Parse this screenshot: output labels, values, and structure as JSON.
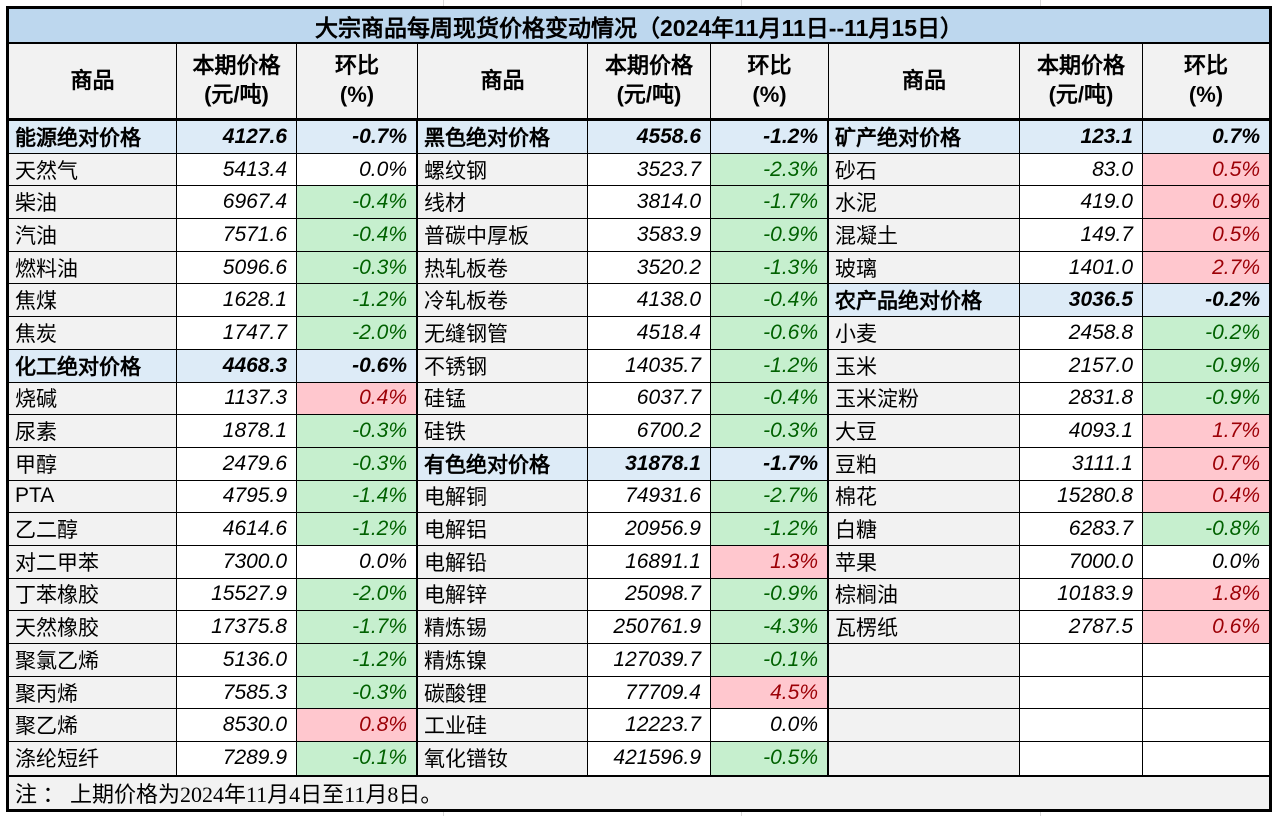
{
  "title": "大宗商品每周现货价格变动情况（2024年11月11日--11月15日）",
  "note": "注 ： 上期价格为2024年11月4日至11月8日。",
  "header": {
    "commodity": "商品",
    "price_line1": "本期价格",
    "price_line2": "(元/吨)",
    "change_line1": "环比",
    "change_line2": "(%)"
  },
  "colors": {
    "title_bg": "#BDD7EE",
    "header_bg": "#F2F2F2",
    "aggregate_bg": "#DDEBF7",
    "increase_bg": "#FFC7CE",
    "increase_text": "#9C0006",
    "decrease_bg": "#C6EFCE",
    "decrease_text": "#006100"
  },
  "chart_data": {
    "type": "table",
    "title": "大宗商品每周现货价格变动情况（2024年11月11日--11月15日）",
    "columns": [
      "商品",
      "本期价格(元/吨)",
      "环比(%)"
    ]
  },
  "groups": [
    {
      "rows": [
        {
          "name": "能源绝对价格",
          "price": "4127.6",
          "change": "-0.7%",
          "type": "agg"
        },
        {
          "name": "天然气",
          "price": "5413.4",
          "change": "0.0%",
          "type": "flat"
        },
        {
          "name": "柴油",
          "price": "6967.4",
          "change": "-0.4%",
          "type": "down"
        },
        {
          "name": "汽油",
          "price": "7571.6",
          "change": "-0.4%",
          "type": "down"
        },
        {
          "name": "燃料油",
          "price": "5096.6",
          "change": "-0.3%",
          "type": "down"
        },
        {
          "name": "焦煤",
          "price": "1628.1",
          "change": "-1.2%",
          "type": "down"
        },
        {
          "name": "焦炭",
          "price": "1747.7",
          "change": "-2.0%",
          "type": "down"
        },
        {
          "name": "化工绝对价格",
          "price": "4468.3",
          "change": "-0.6%",
          "type": "agg"
        },
        {
          "name": "烧碱",
          "price": "1137.3",
          "change": "0.4%",
          "type": "up"
        },
        {
          "name": "尿素",
          "price": "1878.1",
          "change": "-0.3%",
          "type": "down"
        },
        {
          "name": "甲醇",
          "price": "2479.6",
          "change": "-0.3%",
          "type": "down"
        },
        {
          "name": "PTA",
          "price": "4795.9",
          "change": "-1.4%",
          "type": "down"
        },
        {
          "name": "乙二醇",
          "price": "4614.6",
          "change": "-1.2%",
          "type": "down"
        },
        {
          "name": "对二甲苯",
          "price": "7300.0",
          "change": "0.0%",
          "type": "flat"
        },
        {
          "name": "丁苯橡胶",
          "price": "15527.9",
          "change": "-2.0%",
          "type": "down"
        },
        {
          "name": "天然橡胶",
          "price": "17375.8",
          "change": "-1.7%",
          "type": "down"
        },
        {
          "name": "聚氯乙烯",
          "price": "5136.0",
          "change": "-1.2%",
          "type": "down"
        },
        {
          "name": "聚丙烯",
          "price": "7585.3",
          "change": "-0.3%",
          "type": "down"
        },
        {
          "name": "聚乙烯",
          "price": "8530.0",
          "change": "0.8%",
          "type": "up"
        },
        {
          "name": "涤纶短纤",
          "price": "7289.9",
          "change": "-0.1%",
          "type": "down"
        }
      ]
    },
    {
      "rows": [
        {
          "name": "黑色绝对价格",
          "price": "4558.6",
          "change": "-1.2%",
          "type": "agg"
        },
        {
          "name": "螺纹钢",
          "price": "3523.7",
          "change": "-2.3%",
          "type": "down"
        },
        {
          "name": "线材",
          "price": "3814.0",
          "change": "-1.7%",
          "type": "down"
        },
        {
          "name": "普碳中厚板",
          "price": "3583.9",
          "change": "-0.9%",
          "type": "down"
        },
        {
          "name": "热轧板卷",
          "price": "3520.2",
          "change": "-1.3%",
          "type": "down"
        },
        {
          "name": "冷轧板卷",
          "price": "4138.0",
          "change": "-0.4%",
          "type": "down"
        },
        {
          "name": "无缝钢管",
          "price": "4518.4",
          "change": "-0.6%",
          "type": "down"
        },
        {
          "name": "不锈钢",
          "price": "14035.7",
          "change": "-1.2%",
          "type": "down"
        },
        {
          "name": "硅锰",
          "price": "6037.7",
          "change": "-0.4%",
          "type": "down"
        },
        {
          "name": "硅铁",
          "price": "6700.2",
          "change": "-0.3%",
          "type": "down"
        },
        {
          "name": "有色绝对价格",
          "price": "31878.1",
          "change": "-1.7%",
          "type": "agg"
        },
        {
          "name": "电解铜",
          "price": "74931.6",
          "change": "-2.7%",
          "type": "down"
        },
        {
          "name": "电解铝",
          "price": "20956.9",
          "change": "-1.2%",
          "type": "down"
        },
        {
          "name": "电解铅",
          "price": "16891.1",
          "change": "1.3%",
          "type": "up"
        },
        {
          "name": "电解锌",
          "price": "25098.7",
          "change": "-0.9%",
          "type": "down"
        },
        {
          "name": "精炼锡",
          "price": "250761.9",
          "change": "-4.3%",
          "type": "down"
        },
        {
          "name": "精炼镍",
          "price": "127039.7",
          "change": "-0.1%",
          "type": "down"
        },
        {
          "name": "碳酸锂",
          "price": "77709.4",
          "change": "4.5%",
          "type": "up"
        },
        {
          "name": "工业硅",
          "price": "12223.7",
          "change": "0.0%",
          "type": "flat"
        },
        {
          "name": "氧化镨钕",
          "price": "421596.9",
          "change": "-0.5%",
          "type": "down"
        }
      ]
    },
    {
      "rows": [
        {
          "name": "矿产绝对价格",
          "price": "123.1",
          "change": "0.7%",
          "type": "agg"
        },
        {
          "name": "砂石",
          "price": "83.0",
          "change": "0.5%",
          "type": "up"
        },
        {
          "name": "水泥",
          "price": "419.0",
          "change": "0.9%",
          "type": "up"
        },
        {
          "name": "混凝土",
          "price": "149.7",
          "change": "0.5%",
          "type": "up"
        },
        {
          "name": "玻璃",
          "price": "1401.0",
          "change": "2.7%",
          "type": "up"
        },
        {
          "name": "农产品绝对价格",
          "price": "3036.5",
          "change": "-0.2%",
          "type": "agg"
        },
        {
          "name": "小麦",
          "price": "2458.8",
          "change": "-0.2%",
          "type": "down"
        },
        {
          "name": "玉米",
          "price": "2157.0",
          "change": "-0.9%",
          "type": "down"
        },
        {
          "name": "玉米淀粉",
          "price": "2831.8",
          "change": "-0.9%",
          "type": "down"
        },
        {
          "name": "大豆",
          "price": "4093.1",
          "change": "1.7%",
          "type": "up"
        },
        {
          "name": "豆粕",
          "price": "3111.1",
          "change": "0.7%",
          "type": "up"
        },
        {
          "name": "棉花",
          "price": "15280.8",
          "change": "0.4%",
          "type": "up"
        },
        {
          "name": "白糖",
          "price": "6283.7",
          "change": "-0.8%",
          "type": "down"
        },
        {
          "name": "苹果",
          "price": "7000.0",
          "change": "0.0%",
          "type": "flat"
        },
        {
          "name": "棕榈油",
          "price": "10183.9",
          "change": "1.8%",
          "type": "up"
        },
        {
          "name": "瓦楞纸",
          "price": "2787.5",
          "change": "0.6%",
          "type": "up"
        },
        {
          "name": "",
          "price": "",
          "change": "",
          "type": "empty"
        },
        {
          "name": "",
          "price": "",
          "change": "",
          "type": "empty"
        },
        {
          "name": "",
          "price": "",
          "change": "",
          "type": "empty"
        },
        {
          "name": "",
          "price": "",
          "change": "",
          "type": "empty"
        }
      ]
    }
  ]
}
